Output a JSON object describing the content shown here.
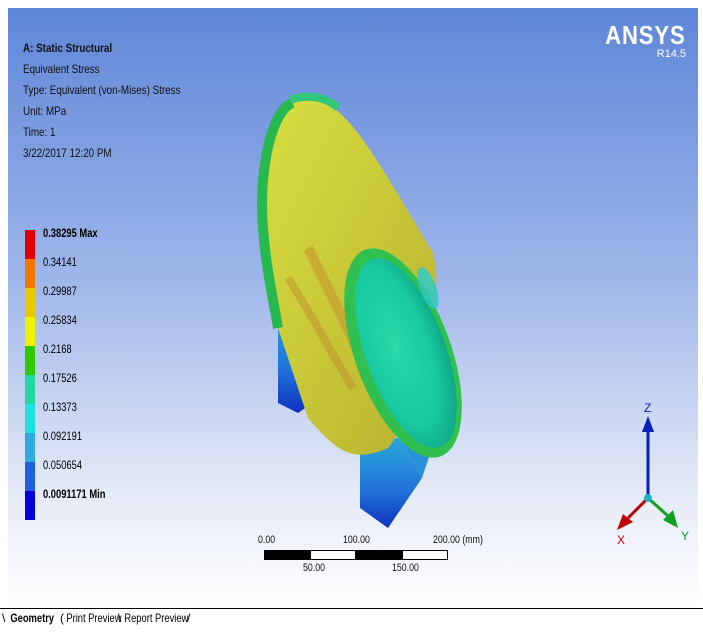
{
  "header": {
    "analysis": "A: Static Structural",
    "result": "Equivalent Stress",
    "type": "Type: Equivalent (von-Mises) Stress",
    "unit": "Unit: MPa",
    "time": "Time: 1",
    "date": "3/22/2017 12:20 PM"
  },
  "brand": {
    "logo": "ANSYS",
    "version": "R14.5"
  },
  "legend": {
    "labels": [
      "0.38295 Max",
      "0.34141",
      "0.29987",
      "0.25834",
      "0.2168",
      "0.17526",
      "0.13373",
      "0.092191",
      "0.050654",
      "0.0091171 Min"
    ],
    "colors": [
      "#e00000",
      "#f07800",
      "#e8c800",
      "#f0f000",
      "#30c800",
      "#20d8a0",
      "#20e0e0",
      "#30a8e0",
      "#2060e0",
      "#0000d8"
    ]
  },
  "scale_bar": {
    "top_labels": [
      "0.00",
      "100.00",
      "200.00 (mm)"
    ],
    "bottom_labels": [
      "50.00",
      "150.00"
    ]
  },
  "triad": {
    "z": "Z",
    "x": "X",
    "y": "Y"
  },
  "tabs": [
    "Geometry",
    "Print Preview",
    "Report Preview"
  ]
}
